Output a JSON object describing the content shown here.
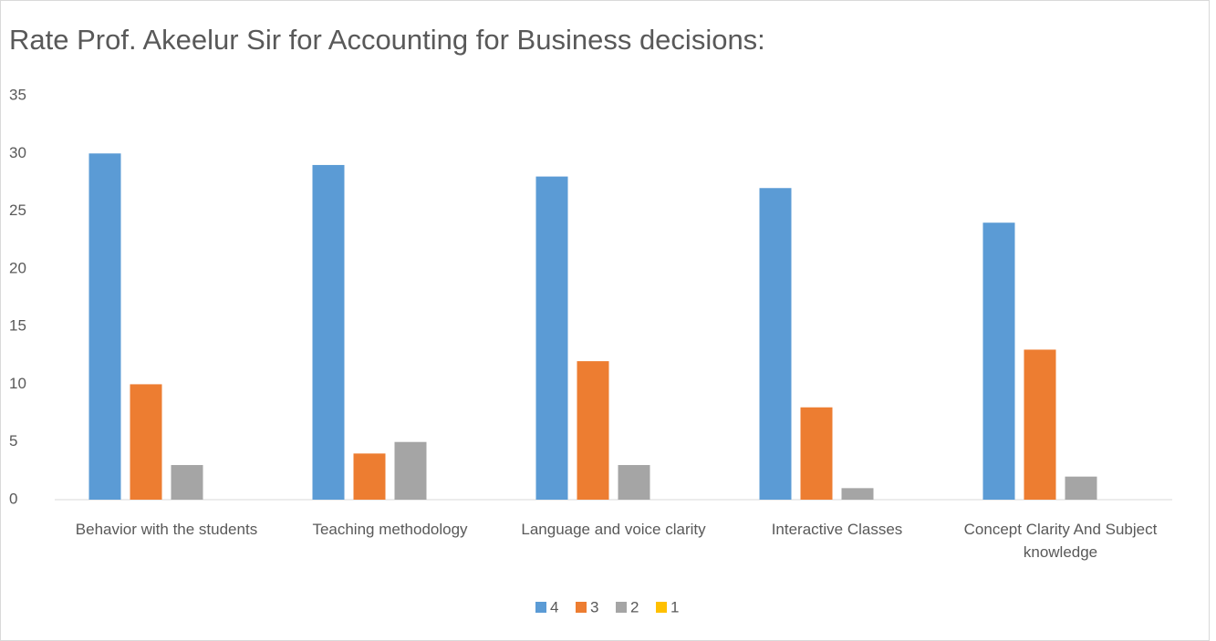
{
  "chart_data": {
    "type": "bar",
    "title": "Rate Prof. Akeelur Sir for Accounting for Business decisions:",
    "categories": [
      "Behavior with the students",
      "Teaching methodology",
      "Language and voice clarity",
      "Interactive Classes",
      "Concept Clarity And Subject knowledge"
    ],
    "series": [
      {
        "name": "4",
        "color": "#5b9bd5",
        "values": [
          30,
          29,
          28,
          27,
          24
        ]
      },
      {
        "name": "3",
        "color": "#ed7d31",
        "values": [
          10,
          4,
          12,
          8,
          13
        ]
      },
      {
        "name": "2",
        "color": "#a5a5a5",
        "values": [
          3,
          5,
          3,
          1,
          2
        ]
      },
      {
        "name": "1",
        "color": "#ffc000",
        "values": [
          0,
          0,
          0,
          0,
          0
        ]
      }
    ],
    "ylim": [
      0,
      35
    ],
    "yticks": [
      0,
      5,
      10,
      15,
      20,
      25,
      30,
      35
    ],
    "grid": false,
    "legend": "bottom"
  }
}
